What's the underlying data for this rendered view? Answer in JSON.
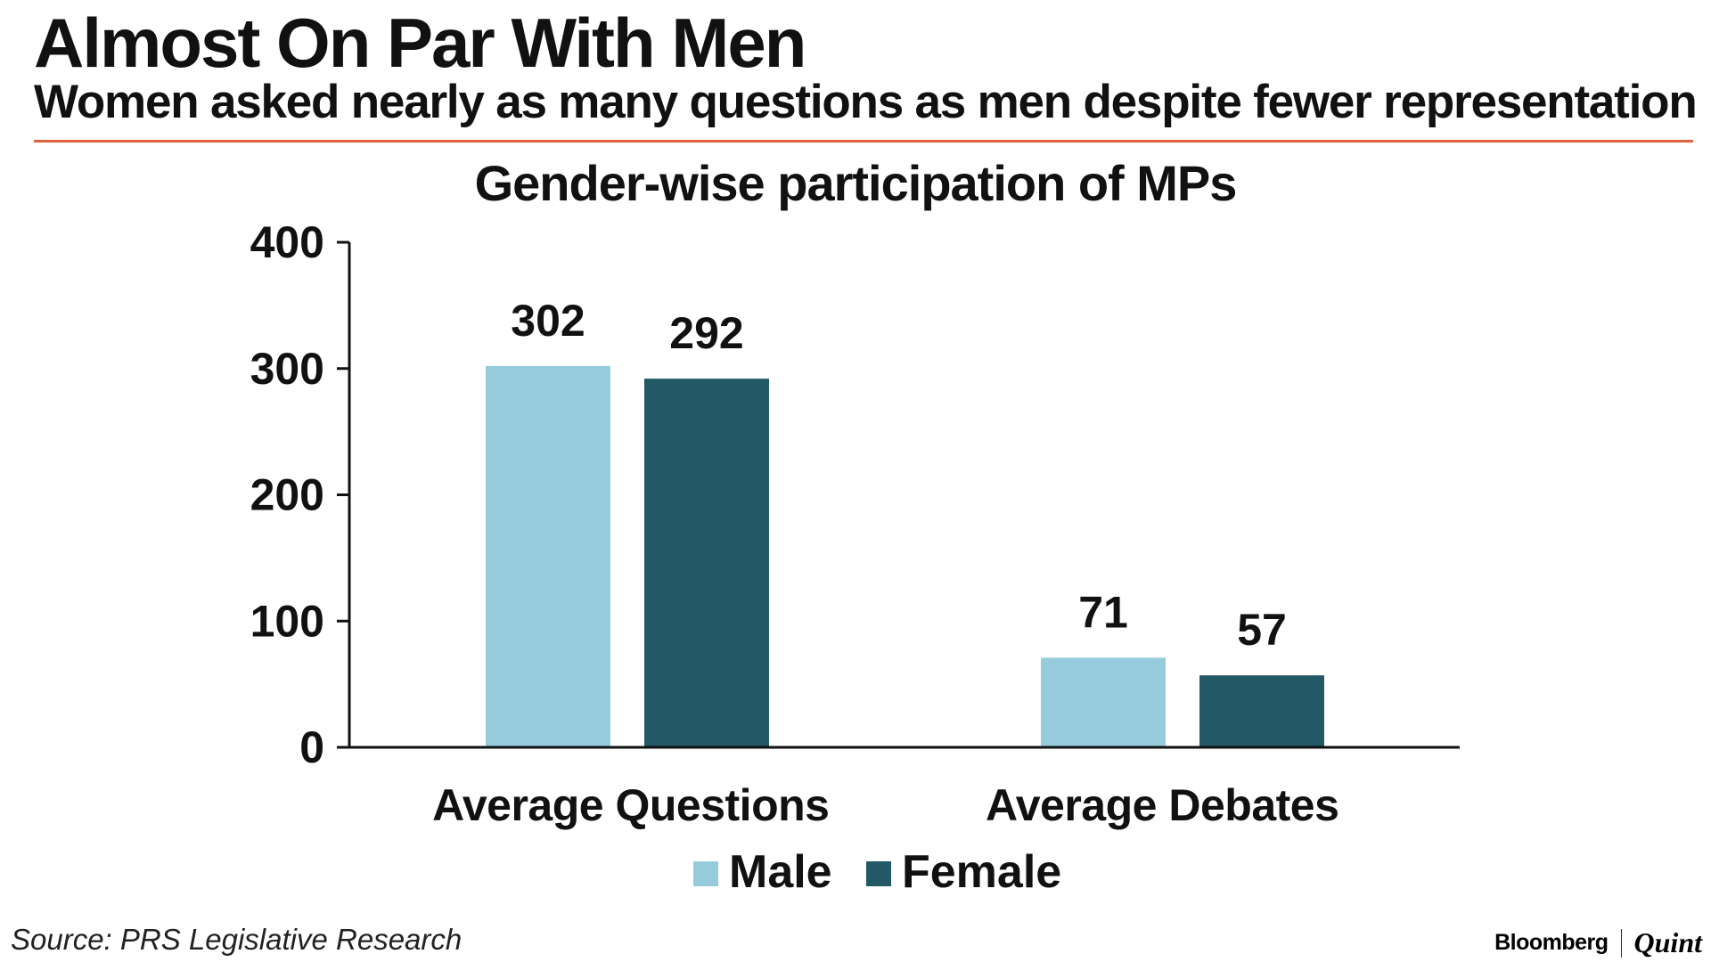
{
  "headline": "Almost On Par With Men",
  "subheadline": "Women asked nearly as many questions as men despite fewer representation",
  "source": "Source: PRS Legislative Research",
  "brand": {
    "primary": "Bloomberg",
    "secondary": "Quint"
  },
  "colors": {
    "accent_rule": "#e2603a",
    "male": "#96cbdd",
    "female": "#235867"
  },
  "chart_data": {
    "type": "bar",
    "title": "Gender-wise participation of MPs",
    "categories": [
      "Average Questions",
      "Average Debates"
    ],
    "series": [
      {
        "name": "Male",
        "values": [
          302,
          71
        ]
      },
      {
        "name": "Female",
        "values": [
          292,
          57
        ]
      }
    ],
    "ylim": [
      0,
      400
    ],
    "yticks": [
      0,
      100,
      200,
      300,
      400
    ],
    "ytick_labels": [
      "0",
      "100",
      "200",
      "300",
      "400"
    ],
    "data_labels": [
      [
        "302",
        "71"
      ],
      [
        "292",
        "57"
      ]
    ],
    "xlabel": "",
    "ylabel": "",
    "legend": [
      "Male",
      "Female"
    ],
    "legend_position": "bottom-center",
    "grid": false
  }
}
